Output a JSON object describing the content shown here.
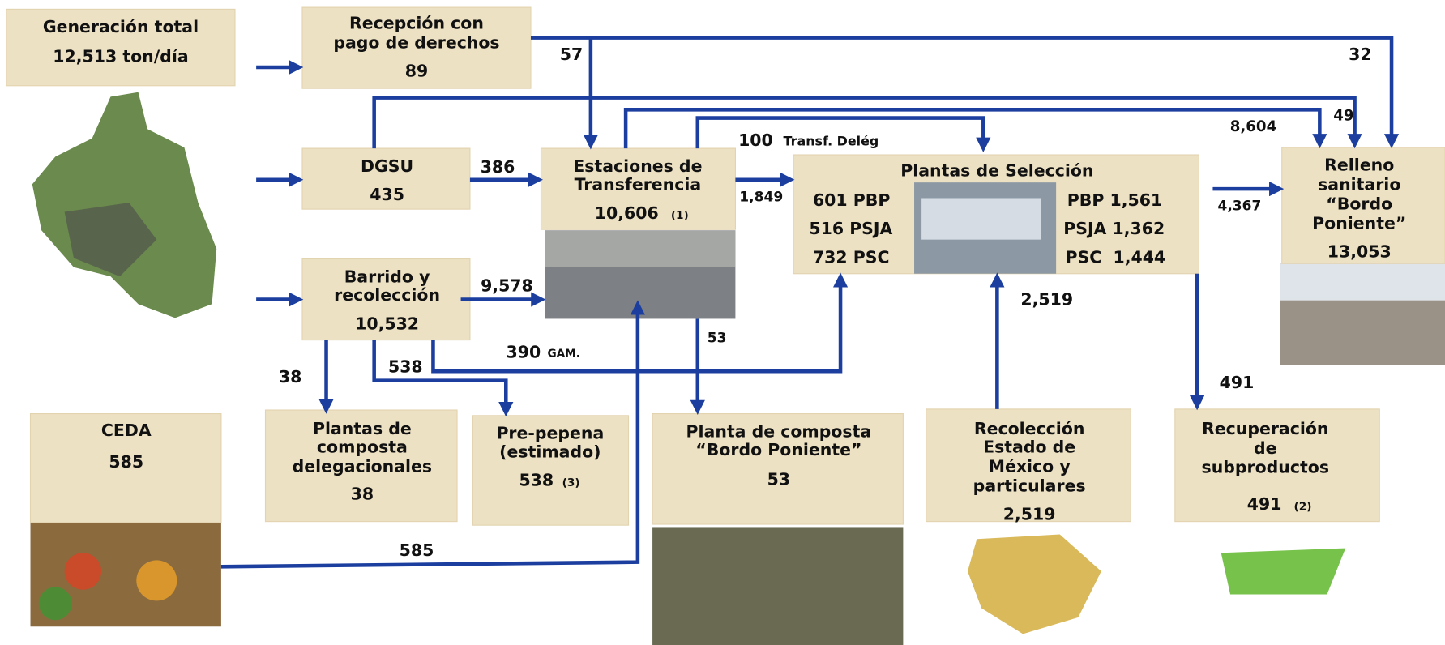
{
  "nodes": [
    {
      "lines": [
        "Generación total",
        "12,513 ton/día"
      ]
    },
    {
      "lines": [
        "Recepción con",
        "pago de  derechos",
        "89"
      ]
    },
    {
      "lines": [
        "DGSU",
        "435"
      ]
    },
    {
      "lines": [
        "Barrido y",
        "recolección",
        "10,532"
      ]
    },
    {
      "lines": [
        "Estaciones de",
        "Transferencia",
        "10,606"
      ],
      "note": "(1)"
    },
    {
      "lines": [
        "Plantas de Selección"
      ],
      "left": [
        "601 PBP",
        "516 PSJA",
        "732 PSC"
      ],
      "right": [
        "PBP 1,561",
        "PSJA 1,362",
        "PSC  1,444"
      ]
    },
    {
      "lines": [
        "Relleno",
        "sanitario",
        "“Bordo",
        "Poniente”",
        "13,053"
      ]
    },
    {
      "lines": [
        "CEDA",
        "585"
      ]
    },
    {
      "lines": [
        "Plantas de",
        "composta",
        "delegacionales",
        "38"
      ]
    },
    {
      "lines": [
        "Pre-pepena",
        "(estimado)",
        "538"
      ],
      "note": "(3)"
    },
    {
      "lines": [
        "Planta de composta",
        "“Bordo Poniente”",
        "53"
      ]
    },
    {
      "lines": [
        "Recolección",
        "Estado de",
        "México y",
        "particulares",
        "2,519"
      ]
    },
    {
      "lines": [
        "Recuperación",
        "de",
        "subproductos",
        "491"
      ],
      "note": "(2)"
    }
  ],
  "flows": [
    "57",
    "32",
    "386",
    "100",
    "Transf. Delég",
    "1,849",
    "8,604",
    "49",
    "4,367",
    "9,578",
    "390",
    "GAM.",
    "53",
    "2,519",
    "38",
    "538",
    "491",
    "585"
  ]
}
